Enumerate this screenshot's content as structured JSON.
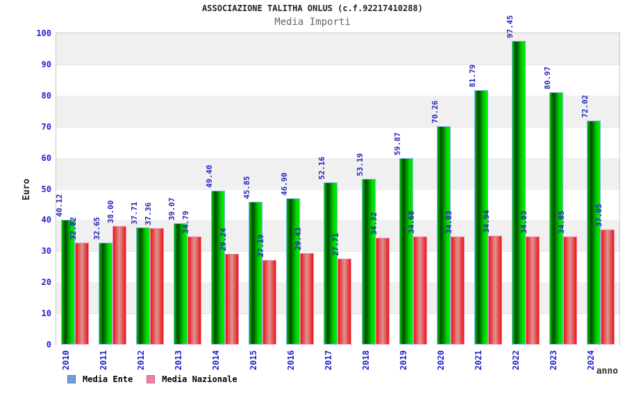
{
  "header": {
    "title": "ASSOCIAZIONE TALITHA ONLUS (c.f.92217410288)",
    "subtitle": "Media Importi"
  },
  "chart_data": {
    "type": "bar",
    "title": "ASSOCIAZIONE TALITHA ONLUS (c.f.92217410288)",
    "subtitle": "Media Importi",
    "xlabel": "anno",
    "ylabel": "Euro",
    "ylim": [
      0,
      100
    ],
    "ytick_step": 10,
    "grid": "alternating-bands",
    "legend_position": "bottom-left",
    "categories": [
      "2010",
      "2011",
      "2012",
      "2013",
      "2014",
      "2015",
      "2016",
      "2017",
      "2018",
      "2019",
      "2020",
      "2021",
      "2022",
      "2023",
      "2024"
    ],
    "series": [
      {
        "name": "Media Ente",
        "color_key": "green",
        "values": [
          40.12,
          32.65,
          37.71,
          39.07,
          49.4,
          45.85,
          46.9,
          52.16,
          53.19,
          59.87,
          70.26,
          81.79,
          97.45,
          80.97,
          72.02
        ]
      },
      {
        "name": "Media Nazionale",
        "color_key": "red",
        "values": [
          32.82,
          38.0,
          37.36,
          34.79,
          29.24,
          27.19,
          29.43,
          27.71,
          34.32,
          34.68,
          34.83,
          34.94,
          34.83,
          34.85,
          37.05
        ]
      }
    ]
  },
  "legend": {
    "items": [
      {
        "label": "Media Ente",
        "swatch_color": "#6f9fd8",
        "swatch_key": "blue"
      },
      {
        "label": "Media Nazionale",
        "swatch_color": "#ef7fa7",
        "swatch_key": "pink"
      }
    ]
  },
  "colors": {
    "bar_green": "#00cc00",
    "bar_green_border": "#7db4e8",
    "bar_red": "#ee1414",
    "bar_red_border": "#f08cb0",
    "tick_label": "#2222cc",
    "value_label": "#2424bb",
    "band_gray": "#f0f0f0",
    "title": "#222222",
    "subtitle": "#666666"
  }
}
